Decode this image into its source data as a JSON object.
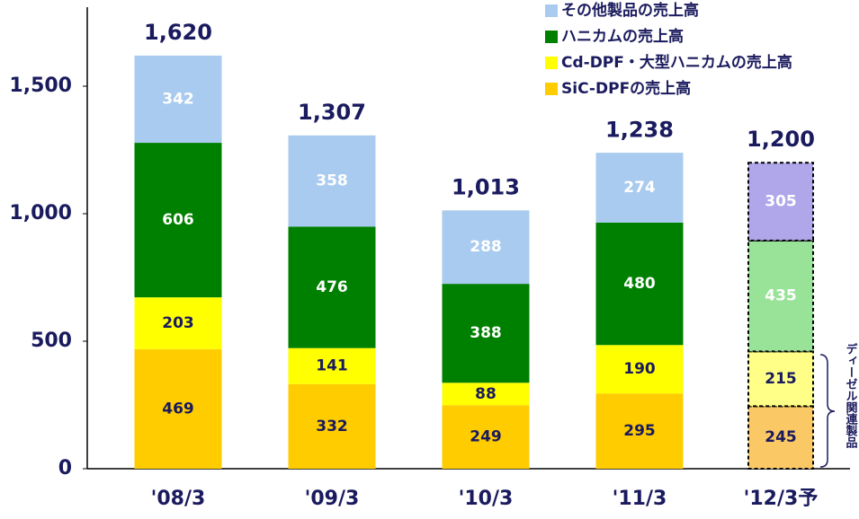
{
  "chart_data": {
    "type": "stacked_bar",
    "categories": [
      "'08/3",
      "'09/3",
      "'10/3",
      "'11/3",
      "'12/3予"
    ],
    "forecast": [
      false,
      false,
      false,
      false,
      true
    ],
    "series": [
      {
        "name": "SiC-DPFの売上高",
        "color": "#FFCC00",
        "forecast_color": "#FAC864",
        "label_color": "#1a1a5e",
        "values": [
          469,
          332,
          249,
          295,
          245
        ]
      },
      {
        "name": "Cd-DPF・大型ハニカムの売上高",
        "color": "#FFFF00",
        "forecast_color": "#FFFF88",
        "label_color": "#1a1a5e",
        "values": [
          203,
          141,
          88,
          190,
          215
        ]
      },
      {
        "name": "ハニカムの売上高",
        "color": "#008000",
        "forecast_color": "#99E399",
        "label_color": "#ffffff",
        "values": [
          606,
          476,
          388,
          480,
          435
        ]
      },
      {
        "name": "その他製品の売上高",
        "color": "#A9CBEF",
        "forecast_color": "#B0A6EA",
        "label_color": "#ffffff",
        "values": [
          342,
          358,
          288,
          274,
          305
        ]
      }
    ],
    "totals": {
      "values": [
        1620,
        1307,
        1013,
        1238,
        1200
      ],
      "value_labels": [
        "1,620",
        "1,307",
        "1,013",
        "1,238",
        "1,200"
      ]
    },
    "ylim": [
      0,
      1800
    ],
    "yticks": [
      0,
      500,
      {
        "value": 1000,
        "label": "1,000"
      },
      {
        "value": 1500,
        "label": "1,500"
      }
    ],
    "legend": "upper right",
    "annotation": "ディーゼル関連製品"
  }
}
